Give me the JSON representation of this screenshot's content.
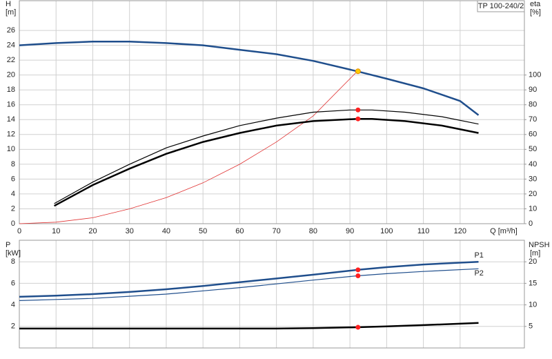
{
  "chart_data": [
    {
      "type": "line",
      "title": "TP 100-240/2",
      "xlabel": "Q [m³/h]",
      "ylabel": "H",
      "yunit": "[m]",
      "y2label": "eta",
      "y2unit": "[%]",
      "xlim": [
        0,
        137.5
      ],
      "xticks": [
        0,
        10,
        20,
        30,
        40,
        50,
        60,
        70,
        80,
        90,
        100,
        110,
        120
      ],
      "ylim": [
        0,
        30
      ],
      "yticks": [
        0,
        2,
        4,
        6,
        8,
        10,
        12,
        14,
        16,
        18,
        20,
        22,
        24,
        26
      ],
      "y2lim": [
        0,
        150
      ],
      "y2ticks": [
        0,
        10,
        20,
        30,
        40,
        50,
        60,
        70,
        80,
        90,
        100
      ],
      "grid": true,
      "series": [
        {
          "color": "#1f4e8c",
          "width": 2.5,
          "x": [
            0,
            10,
            20,
            30,
            40,
            50,
            60,
            70,
            80,
            92,
            100,
            110,
            120,
            125
          ],
          "values": [
            24.0,
            24.3,
            24.5,
            24.5,
            24.3,
            24.0,
            23.4,
            22.8,
            21.9,
            20.5,
            19.5,
            18.2,
            16.5,
            14.6
          ]
        },
        {
          "color": "#e03030",
          "width": 0.8,
          "x": [
            0,
            10,
            20,
            30,
            40,
            50,
            60,
            70,
            80,
            92
          ],
          "values": [
            0,
            0.2,
            0.8,
            2,
            3.5,
            5.5,
            8,
            11,
            14.5,
            20.5
          ]
        },
        {
          "color": "#000000",
          "width": 1.2,
          "axis": "y2",
          "x": [
            9.5,
            20,
            30,
            40,
            50,
            60,
            70,
            80,
            90,
            96,
            105,
            115,
            125
          ],
          "values": [
            13.5,
            28,
            40,
            51,
            59,
            66,
            71,
            75,
            76.5,
            76.5,
            75,
            72,
            67
          ]
        },
        {
          "color": "#000000",
          "width": 2.5,
          "axis": "y2",
          "x": [
            9.5,
            20,
            30,
            40,
            50,
            60,
            70,
            80,
            92,
            96,
            105,
            115,
            125
          ],
          "values": [
            12,
            26,
            37,
            47,
            55,
            61,
            66,
            69,
            70.5,
            70.5,
            69,
            66,
            61
          ]
        }
      ],
      "markers": [
        {
          "x": 92.2,
          "y": 20.5,
          "color": "#ffcc00"
        },
        {
          "x": 92.2,
          "y": 76.5,
          "color": "#ff2020",
          "axis": "y2"
        },
        {
          "x": 92.2,
          "y": 70.5,
          "color": "#ff2020",
          "axis": "y2"
        }
      ]
    },
    {
      "type": "line",
      "ylabel": "P",
      "yunit": "[kW]",
      "y2label": "NPSH",
      "y2unit": "[m]",
      "xlim": [
        0,
        137.5
      ],
      "ylim": [
        0,
        10
      ],
      "yticks": [
        2,
        4,
        6,
        8
      ],
      "y2lim": [
        0,
        25
      ],
      "y2ticks": [
        5,
        10,
        15,
        20
      ],
      "grid": true,
      "series": [
        {
          "name": "P1",
          "color": "#1f4e8c",
          "width": 2.5,
          "x": [
            0,
            10,
            20,
            30,
            40,
            50,
            60,
            70,
            80,
            92,
            100,
            110,
            125
          ],
          "values": [
            4.75,
            4.85,
            5.0,
            5.2,
            5.45,
            5.75,
            6.1,
            6.45,
            6.8,
            7.25,
            7.5,
            7.75,
            8.0
          ]
        },
        {
          "name": "P2",
          "color": "#1f4e8c",
          "width": 1.2,
          "x": [
            0,
            10,
            20,
            30,
            40,
            50,
            60,
            70,
            80,
            92,
            100,
            110,
            125
          ],
          "values": [
            4.4,
            4.5,
            4.6,
            4.8,
            5.0,
            5.3,
            5.6,
            5.95,
            6.3,
            6.7,
            6.9,
            7.1,
            7.35
          ]
        },
        {
          "color": "#000000",
          "width": 2.5,
          "axis": "y2",
          "x": [
            0,
            10,
            30,
            50,
            70,
            80,
            92,
            100,
            110,
            125
          ],
          "values": [
            4.5,
            4.5,
            4.5,
            4.5,
            4.5,
            4.6,
            4.8,
            5.0,
            5.3,
            5.8
          ]
        }
      ],
      "markers": [
        {
          "x": 92.2,
          "y": 7.25,
          "color": "#ff2020"
        },
        {
          "x": 92.2,
          "y": 6.7,
          "color": "#ff2020"
        },
        {
          "x": 92.2,
          "y": 4.8,
          "color": "#ff2020",
          "axis": "y2"
        }
      ]
    }
  ]
}
